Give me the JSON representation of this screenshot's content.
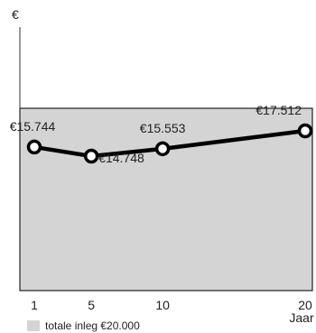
{
  "chart_data": {
    "type": "line",
    "y_unit_label": "€",
    "x_unit_label": "Jaar",
    "x": [
      1,
      5,
      10,
      20
    ],
    "x_tick_labels": [
      "1",
      "5",
      "10",
      "20"
    ],
    "series": [
      {
        "values": [
          15744,
          14748,
          15553,
          17512
        ],
        "labels": [
          "€15.744",
          "€14.748",
          "€15.553",
          "€17.512"
        ]
      }
    ],
    "reference_band": {
      "label": "totale inleg €20.000",
      "value": 20000,
      "color": "#d4d4d4"
    },
    "line_color": "#000000",
    "marker_fill": "#ffffff",
    "ylim": [
      0,
      20000
    ],
    "legend_position": "bottom-left",
    "grid": false
  }
}
